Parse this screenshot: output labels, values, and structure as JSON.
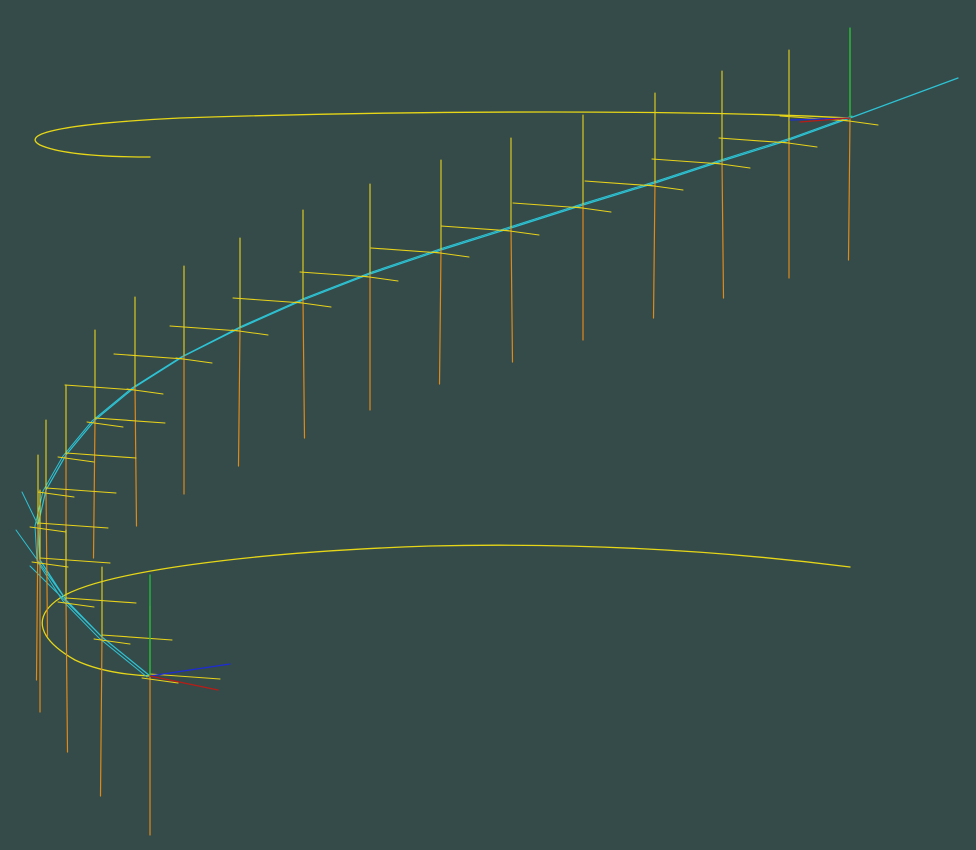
{
  "viewer": {
    "background_color": "#344b4a"
  },
  "colors": {
    "guide_curve": "#e6d617",
    "frame_cross": "#e8d21a",
    "frame_vertical": "#dd8a1a",
    "path_line": "#2ec3d4",
    "axis_x": "#b81c16",
    "axis_y": "#22c23a",
    "axis_z": "#1d2bd6"
  },
  "scene": {
    "frame_count": 20,
    "triads": 2
  }
}
